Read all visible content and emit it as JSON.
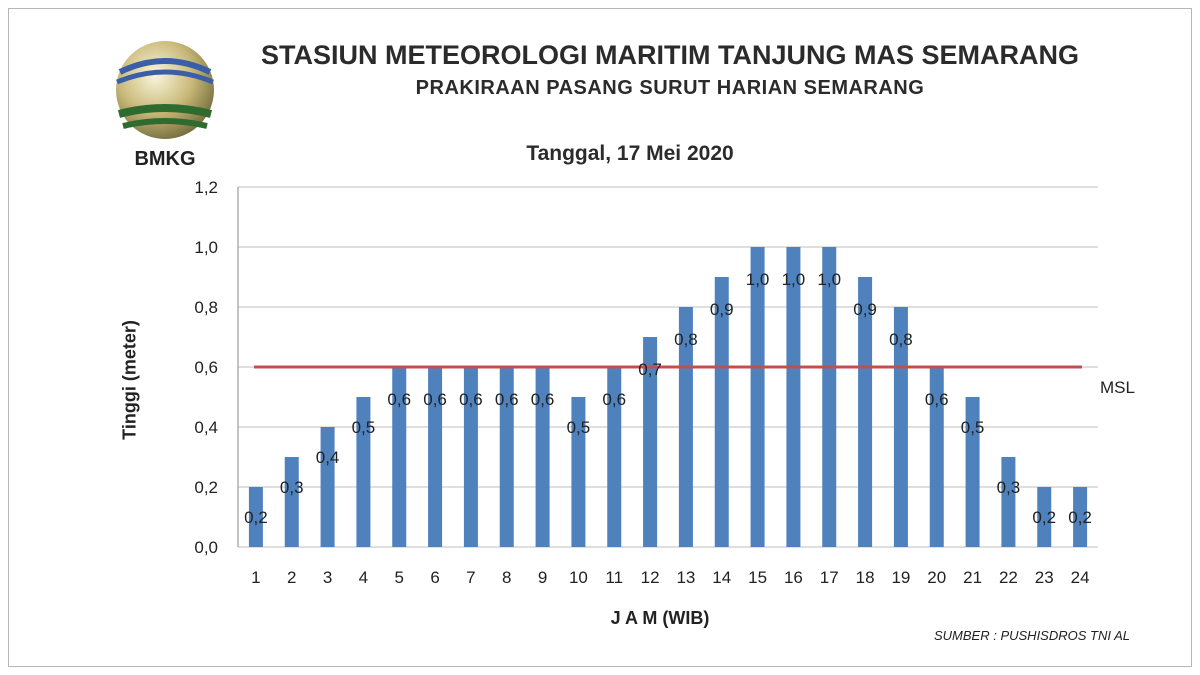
{
  "header": {
    "title": "STASIUN METEOROLOGI MARITIM TANJUNG MAS SEMARANG",
    "subtitle": "PRAKIRAAN PASANG SURUT HARIAN SEMARANG",
    "date": "Tanggal,  17 Mei 2020"
  },
  "logo": {
    "text": "BMKG"
  },
  "source": "SUMBER : PUSHISDROS TNI AL",
  "colors": {
    "bar": "#4f81bd",
    "msl_line": "#c0504d",
    "grid": "#bfbfbf"
  },
  "chart_data": {
    "type": "bar",
    "xlabel": "J A M (WIB)",
    "ylabel": "Tinggi (meter)",
    "categories": [
      "1",
      "2",
      "3",
      "4",
      "5",
      "6",
      "7",
      "8",
      "9",
      "10",
      "11",
      "12",
      "13",
      "14",
      "15",
      "16",
      "17",
      "18",
      "19",
      "20",
      "21",
      "22",
      "23",
      "24"
    ],
    "values": [
      0.2,
      0.3,
      0.4,
      0.5,
      0.6,
      0.6,
      0.6,
      0.6,
      0.6,
      0.5,
      0.6,
      0.7,
      0.8,
      0.9,
      1.0,
      1.0,
      1.0,
      0.9,
      0.8,
      0.6,
      0.5,
      0.3,
      0.2,
      0.2
    ],
    "data_labels": [
      "0,2",
      "0,3",
      "0,4",
      "0,5",
      "0,6",
      "0,6",
      "0,6",
      "0,6",
      "0,6",
      "0,5",
      "0,6",
      "0,7",
      "0,8",
      "0,9",
      "1,0",
      "1,0",
      "1,0",
      "0,9",
      "0,8",
      "0,6",
      "0,5",
      "0,3",
      "0,2",
      "0,2"
    ],
    "ylim": [
      0,
      1.2
    ],
    "yticks": [
      0,
      0.2,
      0.4,
      0.6,
      0.8,
      1.0,
      1.2
    ],
    "ytick_labels": [
      "0,0",
      "0,2",
      "0,4",
      "0,6",
      "0,8",
      "1,0",
      "1,2"
    ],
    "grid": true,
    "reference_line": {
      "label": "MSL",
      "value": 0.6
    }
  }
}
